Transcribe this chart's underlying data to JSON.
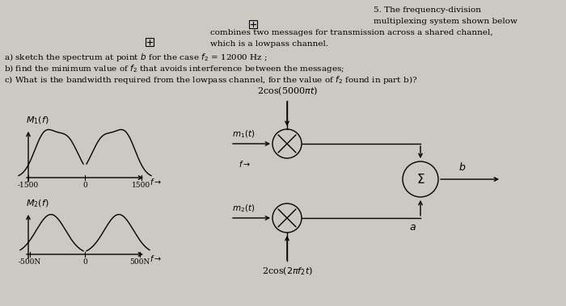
{
  "bg_color": "#ccc9c3",
  "text_color": "#000000",
  "line_color": "#000000",
  "carrier1_label": "2cos(5000$\\pi t$)",
  "carrier2_label": "2cos($2\\pi f_2 t$)",
  "m1_label": "$m_1(t)$",
  "m2_label": "$m_2(t)$",
  "M1_label": "$M_1(f)$",
  "M2_label": "$M_2(f)$",
  "sigma_label": "$\\Sigma$",
  "b_label": "$b$",
  "a_label": "$a$",
  "freq_arrow": "$f\\rightarrow$"
}
